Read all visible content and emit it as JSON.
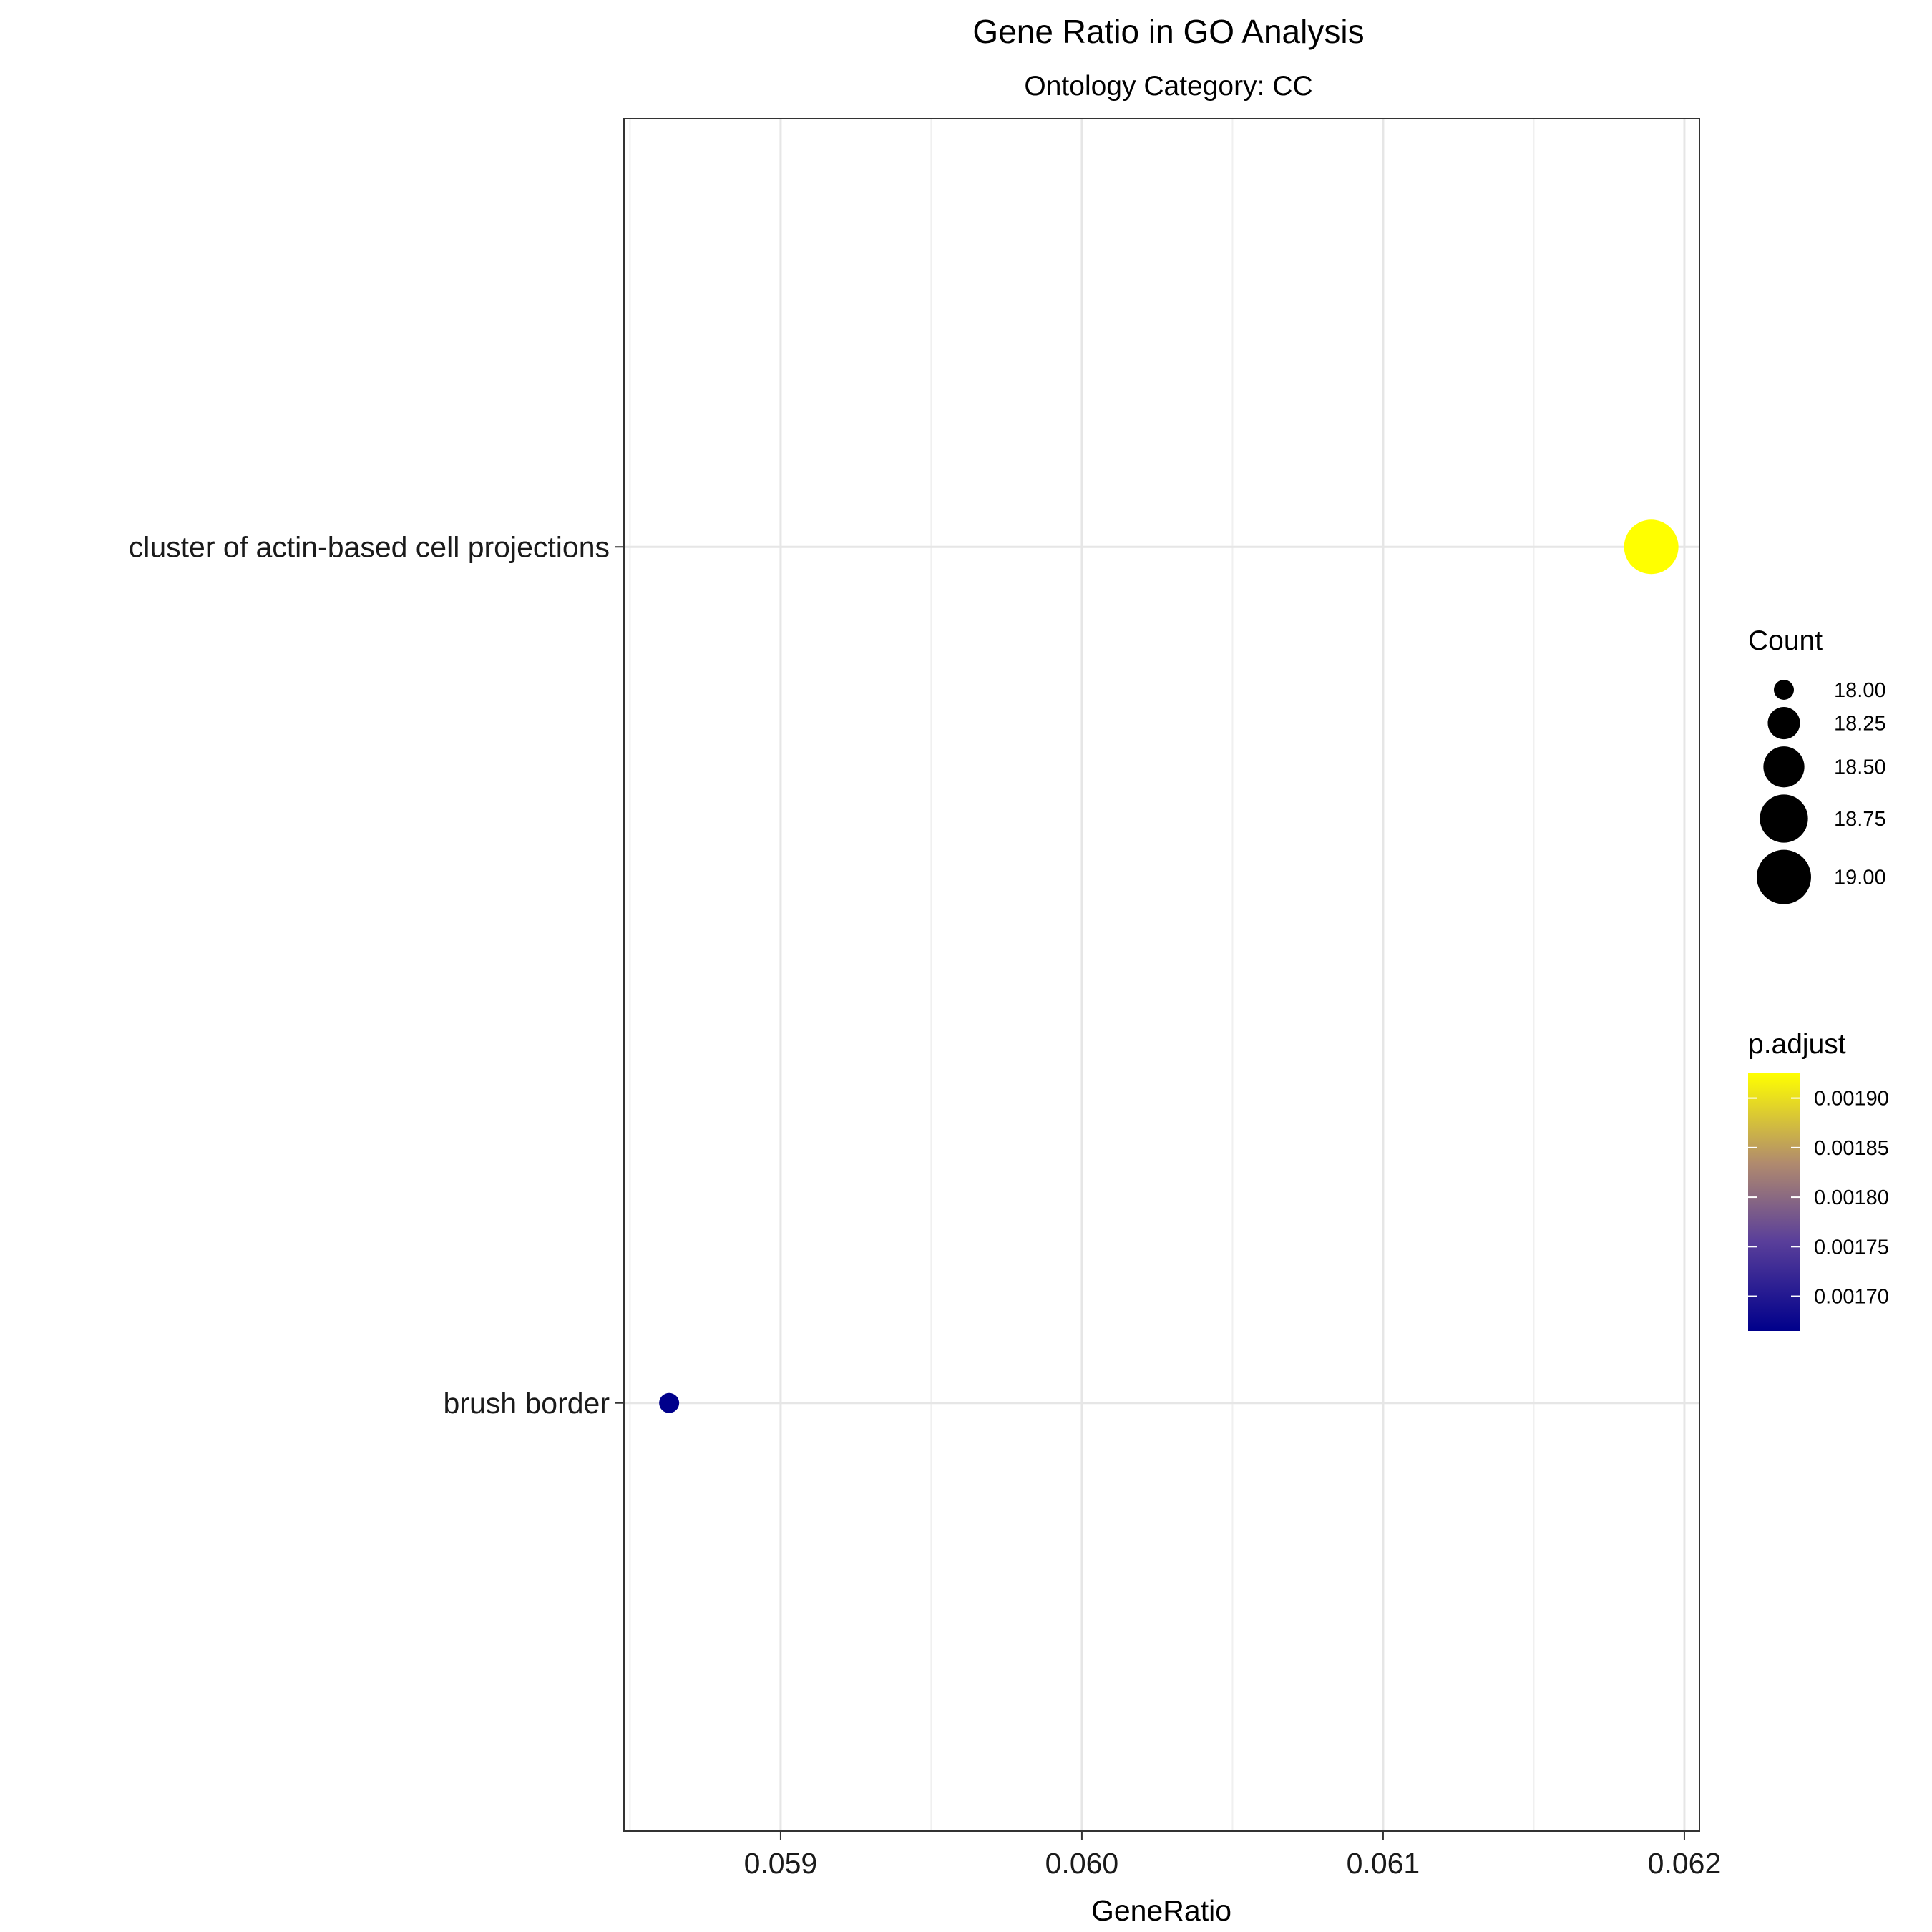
{
  "chart_data": {
    "type": "scatter",
    "title": "Gene Ratio in GO Analysis",
    "subtitle": "Ontology Category: CC",
    "xlabel": "GeneRatio",
    "ylabel": "",
    "xlim": [
      0.05848,
      0.06205
    ],
    "xticks": [
      {
        "value": 0.059,
        "label": "0.059"
      },
      {
        "value": 0.06,
        "label": "0.060"
      },
      {
        "value": 0.061,
        "label": "0.061"
      },
      {
        "value": 0.062,
        "label": "0.062"
      }
    ],
    "categories": [
      "cluster of actin-based cell projections",
      "brush border"
    ],
    "points": [
      {
        "category": "cluster of actin-based cell projections",
        "x": 0.06189,
        "count": 19,
        "p_adjust": 0.001925,
        "color": "#FFFF00"
      },
      {
        "category": "brush border",
        "x": 0.05863,
        "count": 18,
        "p_adjust": 0.001665,
        "color": "#00008B"
      }
    ],
    "grid": true,
    "legend_position": "right",
    "size_legend": {
      "title": "Count",
      "entries": [
        {
          "value": 18.0,
          "label": "18.00"
        },
        {
          "value": 18.25,
          "label": "18.25"
        },
        {
          "value": 18.5,
          "label": "18.50"
        },
        {
          "value": 18.75,
          "label": "18.75"
        },
        {
          "value": 19.0,
          "label": "19.00"
        }
      ]
    },
    "color_legend": {
      "title": "p.adjust",
      "range": [
        0.001665,
        0.001925
      ],
      "low_color": "#00008B",
      "high_color": "#FFFF00",
      "ticks": [
        {
          "value": 0.0017,
          "label": "0.00170"
        },
        {
          "value": 0.00175,
          "label": "0.00175"
        },
        {
          "value": 0.0018,
          "label": "0.00180"
        },
        {
          "value": 0.00185,
          "label": "0.00185"
        },
        {
          "value": 0.0019,
          "label": "0.00190"
        }
      ]
    }
  }
}
